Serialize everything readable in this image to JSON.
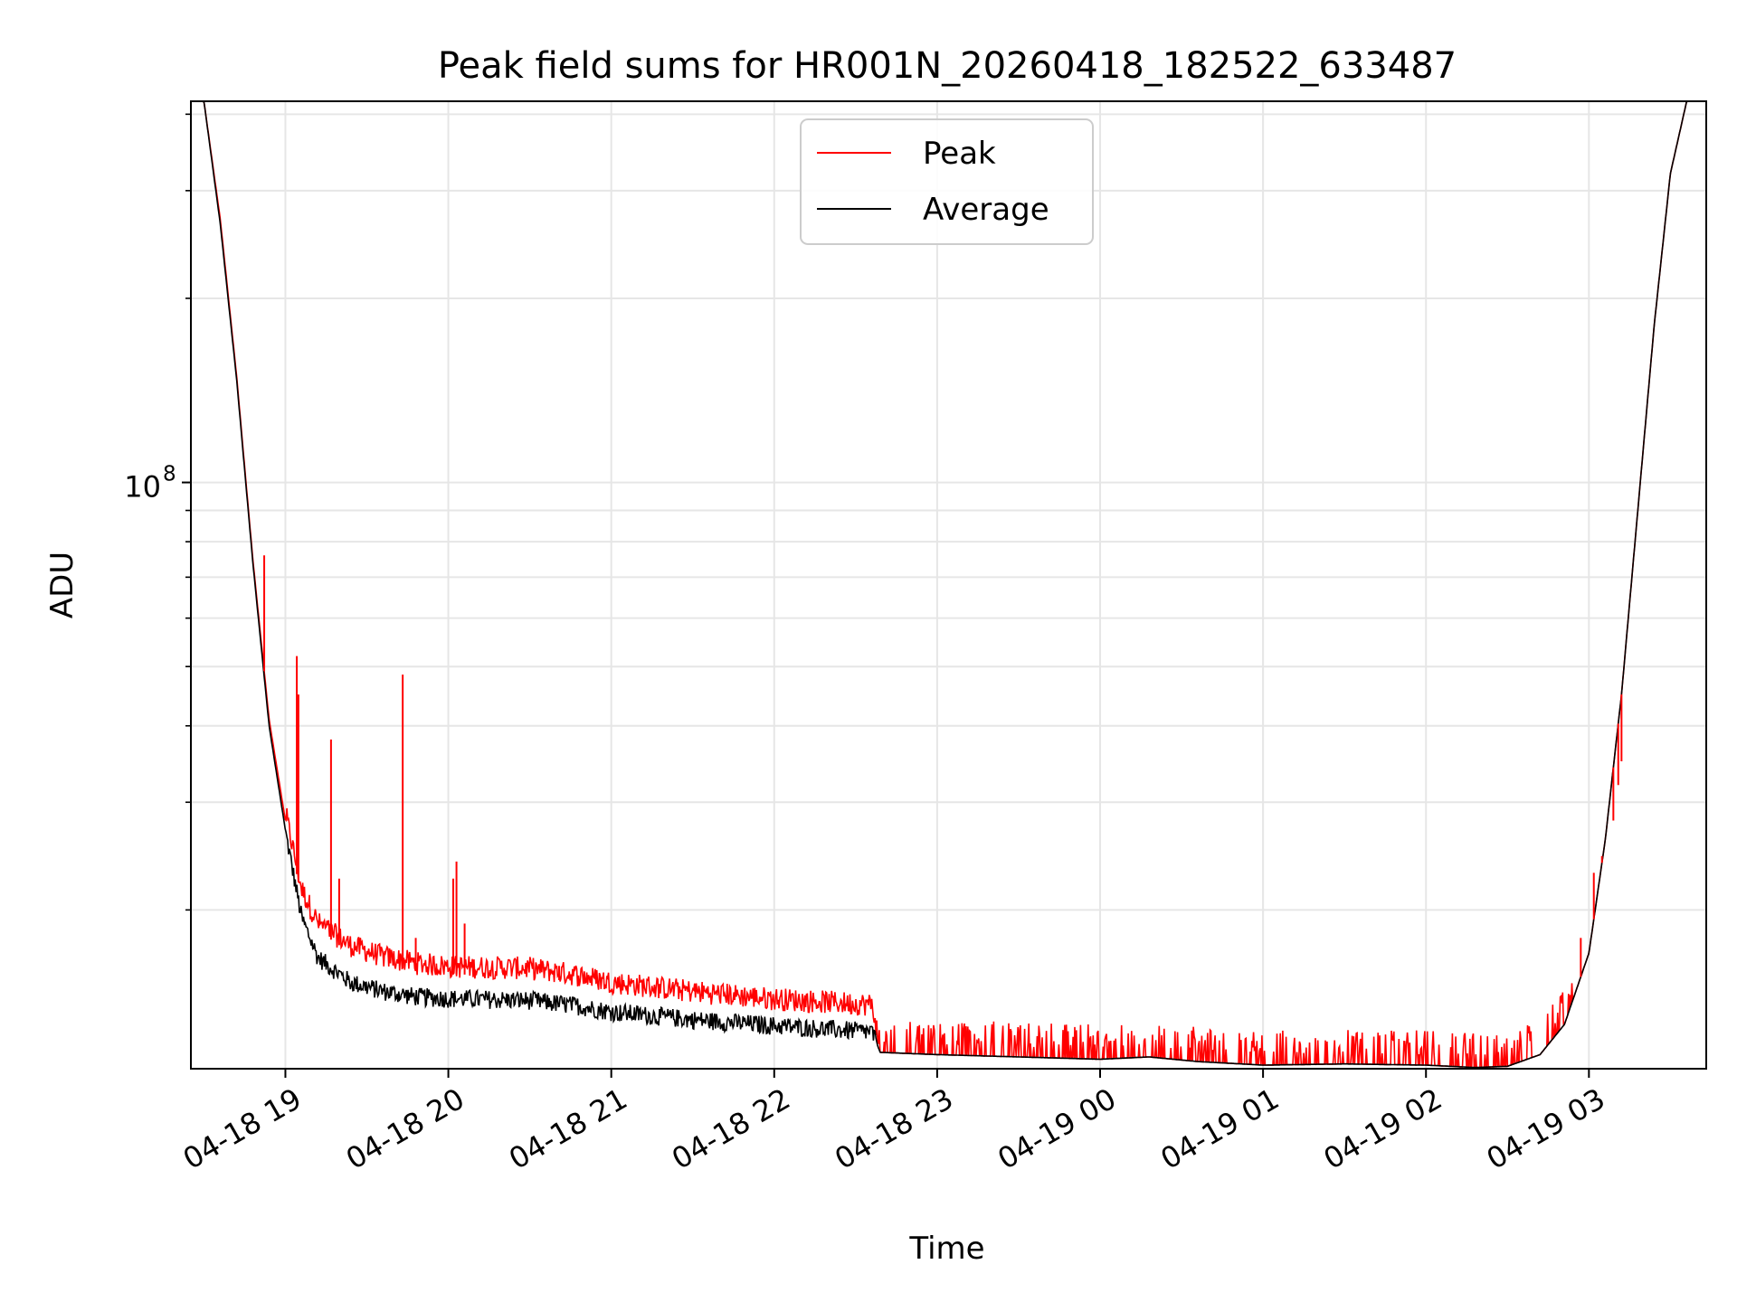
{
  "chart_data": {
    "type": "line",
    "title": "Peak field sums for HR001N_20260418_182522_633487",
    "xlabel": "Time",
    "ylabel": "ADU",
    "yscale": "log",
    "ylim": [
      11000000,
      420000000
    ],
    "xlim_hours": [
      18.42,
      27.72
    ],
    "grid": true,
    "legend_position": "upper-center",
    "x_ticks": [
      {
        "label": "04-18 19",
        "hour": 19
      },
      {
        "label": "04-18 20",
        "hour": 20
      },
      {
        "label": "04-18 21",
        "hour": 21
      },
      {
        "label": "04-18 22",
        "hour": 22
      },
      {
        "label": "04-18 23",
        "hour": 23
      },
      {
        "label": "04-19 00",
        "hour": 24
      },
      {
        "label": "04-19 01",
        "hour": 25
      },
      {
        "label": "04-19 02",
        "hour": 26
      },
      {
        "label": "04-19 03",
        "hour": 27
      }
    ],
    "y_tick_major": {
      "base": "10",
      "exp": "8",
      "value": 100000000
    },
    "series": [
      {
        "name": "Peak",
        "color": "#ff0000",
        "baseline": [
          [
            18.5,
            420000000
          ],
          [
            18.6,
            270000000
          ],
          [
            18.7,
            150000000
          ],
          [
            18.8,
            75000000
          ],
          [
            18.9,
            41000000
          ],
          [
            19.0,
            28000000
          ],
          [
            19.1,
            21000000
          ],
          [
            19.2,
            18500000
          ],
          [
            19.4,
            17000000
          ],
          [
            19.6,
            16300000
          ],
          [
            19.8,
            15900000
          ],
          [
            20.0,
            15700000
          ],
          [
            20.5,
            15600000
          ],
          [
            20.8,
            15200000
          ],
          [
            21.0,
            14800000
          ],
          [
            21.5,
            14300000
          ],
          [
            22.0,
            13900000
          ],
          [
            22.6,
            13600000
          ],
          [
            22.65,
            11700000
          ],
          [
            23.0,
            11600000
          ],
          [
            23.5,
            11500000
          ],
          [
            24.0,
            11400000
          ],
          [
            24.3,
            11500000
          ],
          [
            24.6,
            11300000
          ],
          [
            25.0,
            11150000
          ],
          [
            25.5,
            11200000
          ],
          [
            26.0,
            11150000
          ],
          [
            26.3,
            11050000
          ],
          [
            26.5,
            11100000
          ],
          [
            26.7,
            11600000
          ],
          [
            26.85,
            13000000
          ],
          [
            27.0,
            17000000
          ],
          [
            27.1,
            26000000
          ],
          [
            27.2,
            45000000
          ],
          [
            27.3,
            90000000
          ],
          [
            27.4,
            180000000
          ],
          [
            27.5,
            320000000
          ],
          [
            27.6,
            420000000
          ]
        ],
        "spikes": [
          {
            "hour": 18.87,
            "value": 76000000
          },
          {
            "hour": 19.07,
            "value": 52000000
          },
          {
            "hour": 19.08,
            "value": 45000000
          },
          {
            "hour": 19.28,
            "value": 38000000
          },
          {
            "hour": 19.33,
            "value": 22500000
          },
          {
            "hour": 19.72,
            "value": 48500000
          },
          {
            "hour": 19.8,
            "value": 18000000
          },
          {
            "hour": 20.03,
            "value": 22500000
          },
          {
            "hour": 20.05,
            "value": 24000000
          },
          {
            "hour": 20.1,
            "value": 19000000
          },
          {
            "hour": 20.68,
            "value": 16200000
          },
          {
            "hour": 26.95,
            "value": 18000000
          },
          {
            "hour": 27.03,
            "value": 23000000
          },
          {
            "hour": 27.08,
            "value": 24500000
          },
          {
            "hour": 27.15,
            "value": 28000000
          },
          {
            "hour": 27.18,
            "value": 32000000
          },
          {
            "hour": 27.2,
            "value": 35000000
          }
        ]
      },
      {
        "name": "Average",
        "color": "#000000",
        "baseline": [
          [
            18.5,
            420000000
          ],
          [
            18.6,
            265000000
          ],
          [
            18.7,
            148000000
          ],
          [
            18.8,
            74000000
          ],
          [
            18.9,
            40000000
          ],
          [
            19.0,
            27000000
          ],
          [
            19.1,
            19500000
          ],
          [
            19.2,
            16800000
          ],
          [
            19.4,
            15300000
          ],
          [
            19.6,
            14800000
          ],
          [
            19.8,
            14500000
          ],
          [
            20.0,
            14400000
          ],
          [
            20.5,
            14300000
          ],
          [
            20.8,
            14000000
          ],
          [
            21.0,
            13700000
          ],
          [
            21.5,
            13300000
          ],
          [
            22.0,
            13000000
          ],
          [
            22.6,
            12700000
          ],
          [
            22.65,
            11700000
          ],
          [
            23.0,
            11600000
          ],
          [
            23.5,
            11500000
          ],
          [
            24.0,
            11400000
          ],
          [
            24.3,
            11500000
          ],
          [
            24.6,
            11300000
          ],
          [
            25.0,
            11150000
          ],
          [
            25.5,
            11200000
          ],
          [
            26.0,
            11150000
          ],
          [
            26.3,
            11050000
          ],
          [
            26.5,
            11100000
          ],
          [
            26.7,
            11600000
          ],
          [
            26.85,
            13000000
          ],
          [
            27.0,
            17000000
          ],
          [
            27.1,
            26000000
          ],
          [
            27.2,
            45000000
          ],
          [
            27.3,
            90000000
          ],
          [
            27.4,
            180000000
          ],
          [
            27.5,
            320000000
          ],
          [
            27.6,
            420000000
          ]
        ]
      }
    ]
  }
}
